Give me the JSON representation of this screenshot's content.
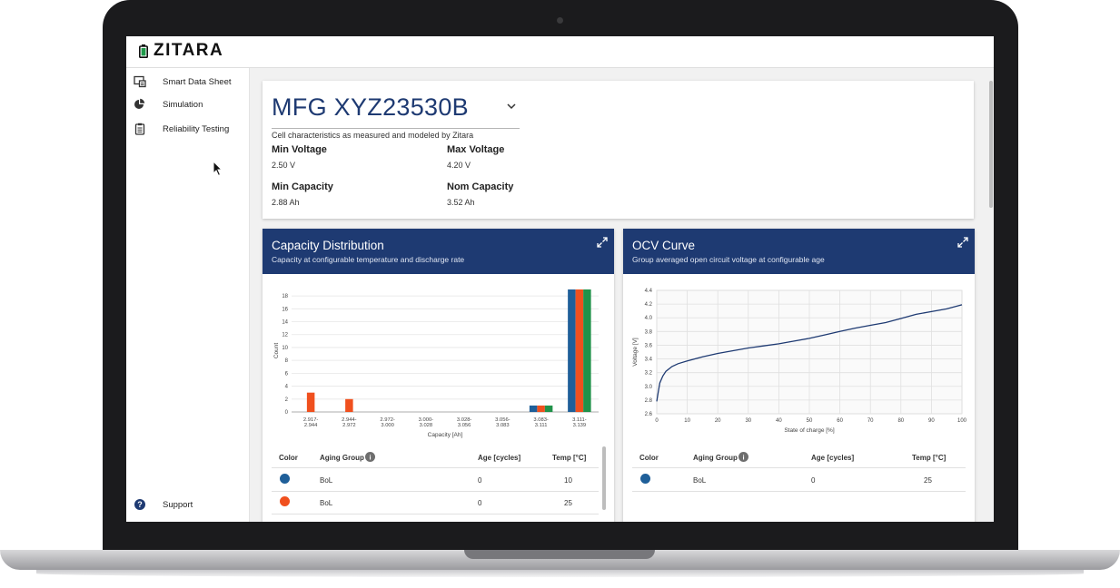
{
  "app": {
    "name": "ZITARA"
  },
  "sidebar": {
    "items": [
      {
        "label": "Smart Data Sheet",
        "icon": "data-sheet-icon"
      },
      {
        "label": "Simulation",
        "icon": "pie-chart-icon"
      },
      {
        "label": "Reliability Testing",
        "icon": "clipboard-icon"
      }
    ],
    "support": {
      "label": "Support",
      "icon": "help-icon"
    }
  },
  "cell": {
    "part_number": "MFG XYZ23530B",
    "subtitle": "Cell characteristics as measured and modeled by Zitara",
    "specs": [
      {
        "label": "Min Voltage",
        "value": "2.50 V"
      },
      {
        "label": "Max Voltage",
        "value": "4.20 V"
      },
      {
        "label": "Min Capacity",
        "value": "2.88 Ah"
      },
      {
        "label": "Nom Capacity",
        "value": "3.52 Ah"
      }
    ]
  },
  "capacity_panel": {
    "title": "Capacity Distribution",
    "subtitle": "Capacity at configurable temperature and discharge rate",
    "table": {
      "headers": [
        "Color",
        "Aging Group",
        "Age [cycles]",
        "Temp [°C]"
      ],
      "rows": [
        {
          "color": "#1f5f99",
          "group": "BoL",
          "age": "0",
          "temp": "10"
        },
        {
          "color": "#f0501e",
          "group": "BoL",
          "age": "0",
          "temp": "25"
        }
      ]
    }
  },
  "ocv_panel": {
    "title": "OCV Curve",
    "subtitle": "Group averaged open circuit voltage at configurable age",
    "table": {
      "headers": [
        "Color",
        "Aging Group",
        "Age [cycles]",
        "Temp [°C]"
      ],
      "rows": [
        {
          "color": "#1f5f99",
          "group": "BoL",
          "age": "0",
          "temp": "25"
        }
      ]
    }
  },
  "chart_data": [
    {
      "type": "bar",
      "xlabel": "Capacity [Ah]",
      "ylabel": "Count",
      "ylim": [
        0,
        19
      ],
      "yticks": [
        0,
        2,
        4,
        6,
        8,
        10,
        12,
        14,
        16,
        18
      ],
      "categories": [
        [
          "2.917-",
          "2.944"
        ],
        [
          "2.944-",
          "2.972"
        ],
        [
          "2.972-",
          "3.000"
        ],
        [
          "3.000-",
          "3.028"
        ],
        [
          "3.028-",
          "3.056"
        ],
        [
          "3.056-",
          "3.083"
        ],
        [
          "3.083-",
          "3.111"
        ],
        [
          "3.111-",
          "3.139"
        ]
      ],
      "series": [
        {
          "color": "#1f5f99",
          "values": [
            0,
            0,
            0,
            0,
            0,
            0,
            1,
            19
          ]
        },
        {
          "color": "#f0501e",
          "values": [
            3,
            2,
            0,
            0,
            0,
            0,
            1,
            19
          ]
        },
        {
          "color": "#21924a",
          "values": [
            0,
            0,
            0,
            0,
            0,
            0,
            1,
            19
          ]
        }
      ],
      "grid": true
    },
    {
      "type": "line",
      "xlabel": "State of charge [%]",
      "ylabel": "Voltage [V]",
      "xlim": [
        0,
        100
      ],
      "ylim": [
        2.6,
        4.4
      ],
      "xticks": [
        0,
        10,
        20,
        30,
        40,
        50,
        60,
        70,
        80,
        90,
        100
      ],
      "yticks": [
        2.6,
        2.8,
        3.0,
        3.2,
        3.4,
        3.6,
        3.8,
        4.0,
        4.2,
        4.4
      ],
      "series": [
        {
          "color": "#1e3a72",
          "x": [
            0,
            0.5,
            1,
            2,
            3,
            5,
            7,
            10,
            15,
            20,
            25,
            30,
            35,
            40,
            45,
            50,
            55,
            60,
            65,
            70,
            75,
            80,
            85,
            90,
            95,
            100
          ],
          "y": [
            2.78,
            2.92,
            3.05,
            3.15,
            3.22,
            3.29,
            3.33,
            3.37,
            3.43,
            3.48,
            3.52,
            3.56,
            3.59,
            3.62,
            3.66,
            3.7,
            3.75,
            3.8,
            3.85,
            3.89,
            3.93,
            3.99,
            4.05,
            4.09,
            4.13,
            4.19
          ]
        }
      ],
      "grid": true
    }
  ]
}
